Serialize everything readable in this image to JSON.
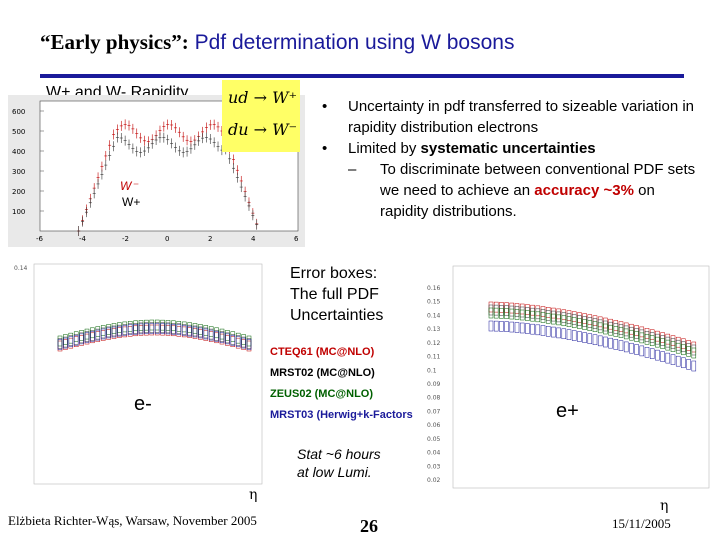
{
  "slide": {
    "title_prefix": "“Early physics”:",
    "title_rest": " Pdf determination using W bosons",
    "subtitle": "W+ and W- Rapidity",
    "bullets": [
      {
        "text": "Uncertainty in pdf transferred to sizeable variation in rapidity distribution electrons"
      },
      {
        "text_plain": "Limited by ",
        "text_bold": "systematic uncertainties"
      }
    ],
    "sub_bullet": {
      "text_plain": "To discriminate between conventional PDF sets we need to achieve  an ",
      "text_red": "accuracy ~3%",
      "text_tail": " on rapidity distributions."
    },
    "formula": {
      "line1": "ud → W⁺",
      "line2": "du → W⁻"
    },
    "error_boxes": {
      "line1": "Error boxes:",
      "line2": "The full PDF",
      "line3": "Uncertainties"
    },
    "legend": [
      {
        "label": "CTEQ61 (MC@NLO)",
        "color": "#c00000"
      },
      {
        "label": "MRST02 (MC@NLO)",
        "color": "#000000"
      },
      {
        "label": "ZEUS02 (MC@NLO)",
        "color": "#006000"
      },
      {
        "label": "MRST03 (Herwig+k-Factors",
        "color": "#1a1a9a"
      }
    ],
    "electron_minus_label": "e-",
    "electron_plus_label": "e+",
    "stat": {
      "line1": "Stat  ~6 hours",
      "line2": "at low  Lumi."
    },
    "eta_symbol": "η",
    "plot_labels": {
      "w_minus": "W⁻",
      "w_plus": "W+"
    },
    "footer": {
      "author": "Elżbieta Richter-Wąs, Warsaw, November 2005",
      "page": "26",
      "date": "15/11/2005"
    },
    "colors": {
      "title_blue": "#1a1a9a",
      "accent_red": "#c00000",
      "formula_bg": "#ffff66"
    }
  },
  "chart_data": [
    {
      "type": "bar",
      "ytick_labels": [
        "100",
        "200",
        "300",
        "400",
        "500",
        "600"
      ],
      "xtick_labels": [
        "-6",
        "-4",
        "-2",
        "0",
        "2",
        "4",
        "6"
      ],
      "ylim": [
        0,
        650
      ],
      "xlim": [
        -6,
        6
      ]
    },
    {
      "type": "bar",
      "ytick_labels": [
        "0.14"
      ]
    },
    {
      "type": "bar",
      "ytick_labels": [
        "0.16",
        "0.15",
        "0.14",
        "0.13",
        "0.12",
        "0.11",
        "0.1",
        "0.09",
        "0.08",
        "0.07",
        "0.06",
        "0.05",
        "0.04",
        "0.03",
        "0.02"
      ]
    }
  ]
}
